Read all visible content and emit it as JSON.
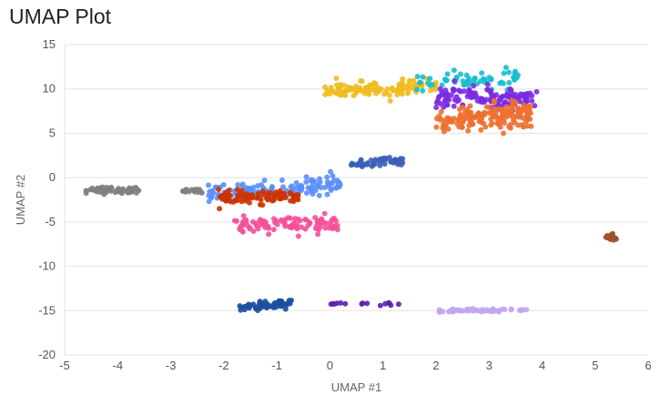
{
  "chart_data": {
    "type": "scatter",
    "title": "UMAP Plot",
    "xlabel": "UMAP #1",
    "ylabel": "UMAP #2",
    "xlim": [
      -5,
      6
    ],
    "ylim": [
      -20,
      15
    ],
    "xticks": [
      -5,
      -4,
      -3,
      -2,
      -1,
      0,
      1,
      2,
      3,
      4,
      5,
      6
    ],
    "yticks": [
      15,
      10,
      5,
      0,
      -5,
      -10,
      -15,
      -20
    ],
    "grid": "horizontal",
    "clusters": [
      {
        "color": "#7f7f7f",
        "n": 60,
        "x": [
          -4.6,
          -3.6
        ],
        "y": -1.4,
        "slope": 0.05,
        "sy": 0.2
      },
      {
        "color": "#7f7f7f",
        "n": 15,
        "x": [
          -2.9,
          -2.4
        ],
        "y": -1.5,
        "slope": 0,
        "sy": 0.1
      },
      {
        "color": "#5b8ff9",
        "n": 130,
        "x": [
          -2.3,
          0.2
        ],
        "y": -1.3,
        "slope": 0.5,
        "sy": 0.5
      },
      {
        "color": "#cc3300",
        "n": 90,
        "x": [
          -2.1,
          -0.5
        ],
        "y": -2.2,
        "slope": 0.1,
        "sy": 0.35
      },
      {
        "color": "#f5509a",
        "n": 100,
        "x": [
          -1.8,
          0.2
        ],
        "y": -5.3,
        "slope": 0,
        "sy": 0.45
      },
      {
        "color": "#3b5fb8",
        "n": 50,
        "x": [
          0.4,
          1.4
        ],
        "y": 1.7,
        "slope": 0.6,
        "sy": 0.2
      },
      {
        "color": "#f0bb1e",
        "n": 110,
        "x": [
          -0.1,
          2.0
        ],
        "y": 10.0,
        "slope": 0.4,
        "sy": 0.5
      },
      {
        "color": "#17becf",
        "n": 60,
        "x": [
          1.6,
          3.6
        ],
        "y": 11.0,
        "slope": 0.3,
        "sy": 0.5
      },
      {
        "color": "#7b2be2",
        "n": 130,
        "x": [
          2.0,
          3.9
        ],
        "y": 9.0,
        "slope": 0,
        "sy": 0.6
      },
      {
        "color": "#ee7030",
        "n": 180,
        "x": [
          2.0,
          3.8
        ],
        "y": 6.8,
        "slope": 0.5,
        "sy": 0.7
      },
      {
        "color": "#a0522d",
        "n": 30,
        "x": [
          5.2,
          5.4
        ],
        "y": -6.7,
        "slope": 0,
        "sy": 0.15
      },
      {
        "color": "#1d4f9e",
        "n": 60,
        "x": [
          -1.7,
          -0.7
        ],
        "y": -14.4,
        "slope": 0.6,
        "sy": 0.25
      },
      {
        "color": "#5a1fb0",
        "n": 15,
        "x": [
          0.0,
          1.3
        ],
        "y": -14.3,
        "slope": 0,
        "sy": 0.1
      },
      {
        "color": "#c3a6f0",
        "n": 55,
        "x": [
          2.0,
          3.8
        ],
        "y": -15.0,
        "slope": 0,
        "sy": 0.1
      }
    ]
  }
}
